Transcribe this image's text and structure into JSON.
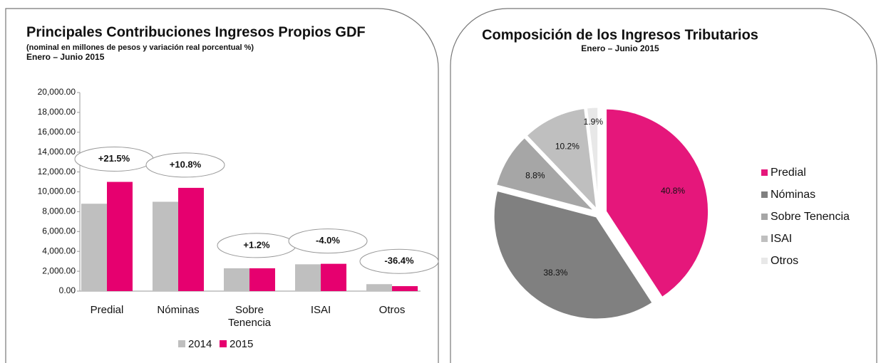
{
  "chart_data": [
    {
      "type": "bar",
      "title": "Principales Contribuciones Ingresos Propios GDF",
      "subtitle": "(nominal en millones de pesos y variación real porcentual %)",
      "period": "Enero – Junio 2015",
      "categories": [
        "Predial",
        "Nóminas",
        "Sobre Tenencia",
        "ISAI",
        "Otros"
      ],
      "series": [
        {
          "name": "2014",
          "color": "#bfbfbf",
          "values": [
            8800,
            9000,
            2300,
            2700,
            700
          ]
        },
        {
          "name": "2015",
          "color": "#e6006f",
          "values": [
            11000,
            10400,
            2300,
            2750,
            500
          ]
        }
      ],
      "annotations": [
        "+21.5%",
        "+10.8%",
        "+1.2%",
        "-4.0%",
        "-36.4%"
      ],
      "ylim": [
        0,
        20000
      ],
      "yticks": [
        {
          "value": 0,
          "label": "0.00"
        },
        {
          "value": 2000,
          "label": "2,000.00"
        },
        {
          "value": 4000,
          "label": "4,000.00"
        },
        {
          "value": 6000,
          "label": "6,000.00"
        },
        {
          "value": 8000,
          "label": "8,000.00"
        },
        {
          "value": 10000,
          "label": "10,000.00"
        },
        {
          "value": 12000,
          "label": "12,000.00"
        },
        {
          "value": 14000,
          "label": "14,000.00"
        },
        {
          "value": 16000,
          "label": "16,000.00"
        },
        {
          "value": 18000,
          "label": "18,000.00"
        },
        {
          "value": 20000,
          "label": "20,000.00"
        }
      ],
      "legend": "bottom"
    },
    {
      "type": "pie",
      "title": "Composición de los Ingresos Tributarios",
      "subtitle": "Enero – Junio 2015",
      "categories": [
        "Predial",
        "Nóminas",
        "Sobre Tenencia",
        "ISAI",
        "Otros"
      ],
      "values": [
        40.8,
        38.3,
        8.8,
        10.2,
        1.9
      ],
      "value_labels": [
        "40.8%",
        "38.3%",
        "8.8%",
        "10.2%",
        "1.9%"
      ],
      "colors": [
        "#e5177b",
        "#808080",
        "#a6a6a6",
        "#bfbfbf",
        "#e8e8e8"
      ],
      "legend": "right"
    }
  ]
}
